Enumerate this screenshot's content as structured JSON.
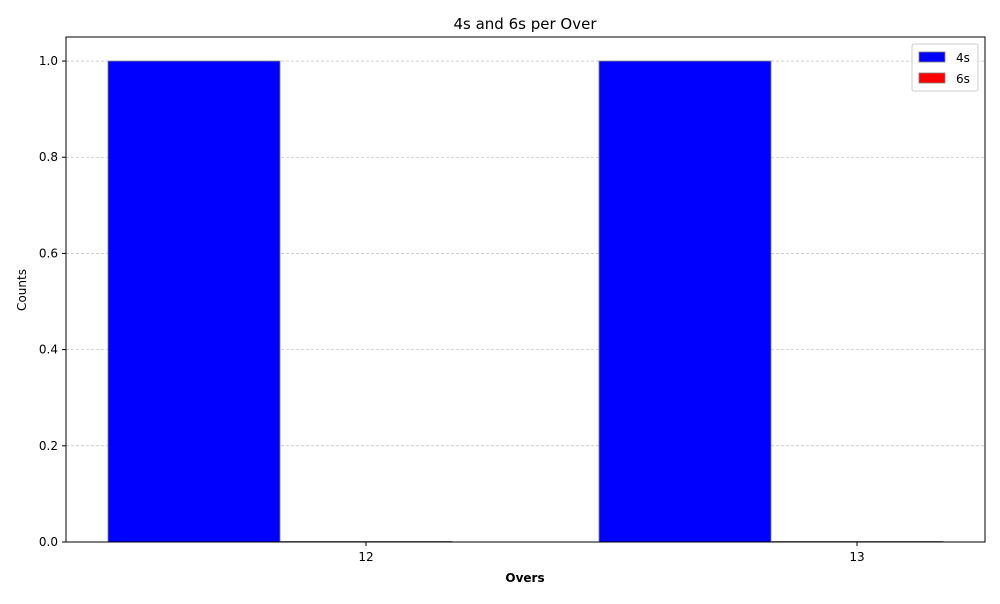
{
  "chart_data": {
    "type": "bar",
    "title": "4s and 6s per Over",
    "xlabel": "Overs",
    "ylabel": "Counts",
    "categories": [
      "12",
      "13"
    ],
    "series": [
      {
        "name": "4s",
        "values": [
          1,
          1
        ],
        "color": "#0000ff"
      },
      {
        "name": "6s",
        "values": [
          0,
          0
        ],
        "color": "#ff0000"
      }
    ],
    "ylim": [
      0,
      1.05
    ],
    "yticks": [
      0.0,
      0.2,
      0.4,
      0.6,
      0.8,
      1.0
    ],
    "ytick_labels": [
      "0.0",
      "0.2",
      "0.4",
      "0.6",
      "0.8",
      "1.0"
    ],
    "grid": "horizontal dashed",
    "legend_position": "top-right",
    "bar_edge_color": "#808080"
  }
}
